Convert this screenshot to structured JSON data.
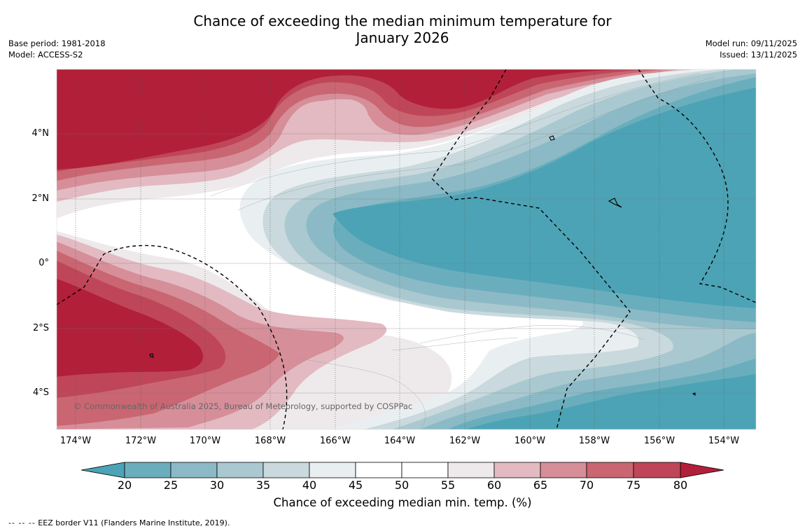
{
  "title_line1": "Chance of exceeding the median minimum temperature for",
  "title_line2": "January 2026",
  "meta_left": {
    "base_period": "Base period: 1981-2018",
    "model": "Model: ACCESS-S2"
  },
  "meta_right": {
    "model_run": "Model run: 09/11/2025",
    "issued": "Issued: 13/11/2025"
  },
  "map": {
    "copyright": "© Commonwealth of Australia 2025, Bureau of Meteorology, supported by COSPPac",
    "lon_ticks": [
      "174°W",
      "172°W",
      "170°W",
      "168°W",
      "166°W",
      "164°W",
      "162°W",
      "160°W",
      "158°W",
      "156°W",
      "154°W"
    ],
    "lat_ticks": [
      "4°N",
      "2°N",
      "0°",
      "2°S",
      "4°S"
    ]
  },
  "colorbar": {
    "label": "Chance of exceeding median min. temp. (%)",
    "ticks": [
      "20",
      "25",
      "30",
      "35",
      "40",
      "45",
      "50",
      "55",
      "60",
      "65",
      "70",
      "75",
      "80"
    ],
    "colors": {
      "below20": "#4ca3b5",
      "b20_25": "#6aaebd",
      "b25_30": "#8bbac6",
      "b30_35": "#aac8cf",
      "b35_40": "#c9d9dd",
      "b40_45": "#e9eff1",
      "b45_50": "#ffffff",
      "b50_55": "#ffffff",
      "b55_60": "#eeeaec",
      "b60_65": "#e3bac2",
      "b65_70": "#d68e99",
      "b70_75": "#c96672",
      "b75_80": "#bf4658",
      "above80": "#b21f38"
    }
  },
  "footer": {
    "legend_dash": "--  --  --",
    "legend_text": " EEZ border V11 (Flanders Marine Institute, 2019)."
  }
}
